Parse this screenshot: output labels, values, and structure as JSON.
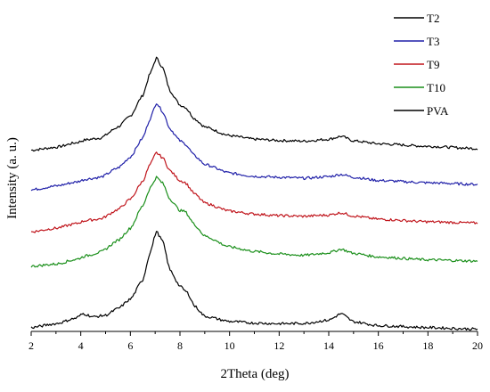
{
  "chart_data": {
    "type": "line",
    "xlabel": "2Theta (deg)",
    "ylabel": "Intensity (a. u.)",
    "xlim": [
      2,
      20
    ],
    "ylim": [
      0,
      1
    ],
    "x_ticks": [
      "2",
      "4",
      "6",
      "8",
      "10",
      "12",
      "14",
      "16",
      "18",
      "20"
    ],
    "y_ticks": [],
    "grid": false,
    "legend_position": "top-right",
    "series": [
      {
        "name": "T2",
        "color": "#000000",
        "points": [
          [
            2,
            0.562
          ],
          [
            3,
            0.571
          ],
          [
            3.8,
            0.585
          ],
          [
            4.2,
            0.594
          ],
          [
            4.8,
            0.6
          ],
          [
            5.5,
            0.634
          ],
          [
            6,
            0.668
          ],
          [
            6.5,
            0.732
          ],
          [
            6.8,
            0.8
          ],
          [
            7.05,
            0.848
          ],
          [
            7.3,
            0.818
          ],
          [
            7.6,
            0.746
          ],
          [
            8.0,
            0.702
          ],
          [
            8.2,
            0.696
          ],
          [
            8.6,
            0.659
          ],
          [
            9,
            0.634
          ],
          [
            10,
            0.607
          ],
          [
            11,
            0.596
          ],
          [
            12,
            0.592
          ],
          [
            13,
            0.59
          ],
          [
            14,
            0.596
          ],
          [
            14.5,
            0.605
          ],
          [
            15,
            0.591
          ],
          [
            16,
            0.582
          ],
          [
            18,
            0.574
          ],
          [
            20,
            0.567
          ]
        ]
      },
      {
        "name": "T3",
        "color": "#1f1fa8",
        "points": [
          [
            2,
            0.439
          ],
          [
            3,
            0.451
          ],
          [
            3.8,
            0.463
          ],
          [
            4.2,
            0.472
          ],
          [
            4.8,
            0.478
          ],
          [
            5.5,
            0.507
          ],
          [
            6,
            0.541
          ],
          [
            6.5,
            0.6
          ],
          [
            6.8,
            0.66
          ],
          [
            7.05,
            0.709
          ],
          [
            7.3,
            0.682
          ],
          [
            7.6,
            0.628
          ],
          [
            8.0,
            0.591
          ],
          [
            8.2,
            0.582
          ],
          [
            8.6,
            0.544
          ],
          [
            9,
            0.518
          ],
          [
            10,
            0.491
          ],
          [
            11,
            0.481
          ],
          [
            12,
            0.478
          ],
          [
            13,
            0.475
          ],
          [
            14,
            0.48
          ],
          [
            14.5,
            0.487
          ],
          [
            15,
            0.478
          ],
          [
            16,
            0.468
          ],
          [
            18,
            0.461
          ],
          [
            20,
            0.456
          ]
        ]
      },
      {
        "name": "T9",
        "color": "#c0151c",
        "points": [
          [
            2,
            0.309
          ],
          [
            3,
            0.32
          ],
          [
            3.8,
            0.334
          ],
          [
            4.2,
            0.344
          ],
          [
            4.8,
            0.349
          ],
          [
            5.5,
            0.378
          ],
          [
            6,
            0.41
          ],
          [
            6.5,
            0.466
          ],
          [
            6.8,
            0.518
          ],
          [
            7.05,
            0.554
          ],
          [
            7.3,
            0.539
          ],
          [
            7.6,
            0.498
          ],
          [
            8.0,
            0.468
          ],
          [
            8.2,
            0.462
          ],
          [
            8.6,
            0.426
          ],
          [
            9,
            0.398
          ],
          [
            10,
            0.373
          ],
          [
            11,
            0.364
          ],
          [
            12,
            0.359
          ],
          [
            13,
            0.357
          ],
          [
            14,
            0.361
          ],
          [
            14.5,
            0.368
          ],
          [
            15,
            0.358
          ],
          [
            16,
            0.348
          ],
          [
            18,
            0.34
          ],
          [
            20,
            0.336
          ]
        ]
      },
      {
        "name": "T10",
        "color": "#1a8f1a",
        "points": [
          [
            2,
            0.202
          ],
          [
            3,
            0.209
          ],
          [
            3.8,
            0.223
          ],
          [
            4.2,
            0.234
          ],
          [
            4.8,
            0.246
          ],
          [
            5.5,
            0.282
          ],
          [
            6,
            0.32
          ],
          [
            6.5,
            0.39
          ],
          [
            6.8,
            0.445
          ],
          [
            7.05,
            0.478
          ],
          [
            7.3,
            0.46
          ],
          [
            7.6,
            0.41
          ],
          [
            8.0,
            0.375
          ],
          [
            8.2,
            0.372
          ],
          [
            8.6,
            0.33
          ],
          [
            9,
            0.296
          ],
          [
            10,
            0.262
          ],
          [
            11,
            0.248
          ],
          [
            12,
            0.24
          ],
          [
            13,
            0.236
          ],
          [
            14,
            0.244
          ],
          [
            14.5,
            0.255
          ],
          [
            15,
            0.242
          ],
          [
            16,
            0.231
          ],
          [
            18,
            0.222
          ],
          [
            20,
            0.218
          ]
        ]
      },
      {
        "name": "PVA",
        "color": "#000000",
        "points": [
          [
            2,
            0.012
          ],
          [
            3,
            0.024
          ],
          [
            3.8,
            0.041
          ],
          [
            4.1,
            0.055
          ],
          [
            4.5,
            0.045
          ],
          [
            5,
            0.05
          ],
          [
            5.5,
            0.071
          ],
          [
            6,
            0.1
          ],
          [
            6.5,
            0.16
          ],
          [
            6.8,
            0.246
          ],
          [
            7.05,
            0.31
          ],
          [
            7.3,
            0.28
          ],
          [
            7.6,
            0.19
          ],
          [
            8.0,
            0.14
          ],
          [
            8.3,
            0.12
          ],
          [
            8.6,
            0.078
          ],
          [
            9,
            0.047
          ],
          [
            10,
            0.031
          ],
          [
            11,
            0.026
          ],
          [
            12,
            0.024
          ],
          [
            13,
            0.025
          ],
          [
            14,
            0.035
          ],
          [
            14.5,
            0.055
          ],
          [
            15,
            0.03
          ],
          [
            16,
            0.018
          ],
          [
            18,
            0.012
          ],
          [
            20,
            0.007
          ]
        ]
      }
    ]
  }
}
